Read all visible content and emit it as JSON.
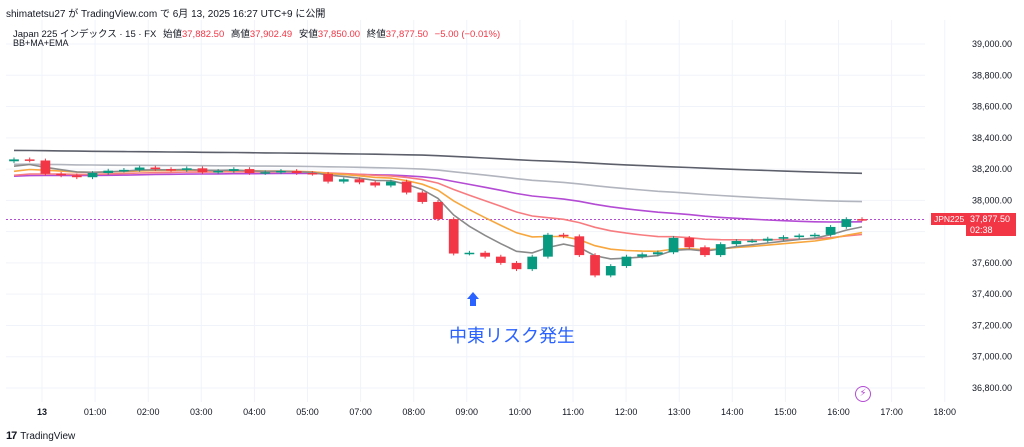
{
  "header": {
    "publisher": "shimatetsu27 が TradingView.com で 6月 13, 2025 16:27 UTC+9 に公開"
  },
  "legend": {
    "symbol": "Japan 225 インデックス · 15 · FX",
    "open_label": "始値",
    "open": "37,882.50",
    "high_label": "高値",
    "high": "37,902.49",
    "low_label": "安値",
    "low": "37,850.00",
    "close_label": "終値",
    "close": "37,877.50",
    "change": "−5.00 (−0.01%)",
    "indicators": "BB+MA+EMA"
  },
  "price_tag": {
    "symbol": "JPN225",
    "price": "37,877.50",
    "countdown": "02:38"
  },
  "annotation": "中東リスク発生",
  "footer": {
    "brand": "TradingView"
  },
  "colors": {
    "up": "#089981",
    "down": "#f23645",
    "annotation": "#2962ff",
    "ma_dark": "#5d606b",
    "ma_grey": "#b2b5be",
    "purple": "#b44bd4",
    "pink": "#f77c80",
    "orange": "#f7a73e",
    "ema_fast": "#8a8a8a"
  },
  "chart_data": {
    "type": "candlestick",
    "y_ticks": [
      39000,
      38800,
      38600,
      38400,
      38200,
      38000,
      37800,
      37600,
      37400,
      37200,
      37000,
      36800
    ],
    "y_tick_labels": [
      "39,000.00",
      "38,800.00",
      "38,600.00",
      "38,400.00",
      "38,200.00",
      "38,000.00",
      "37,800.00",
      "37,600.00",
      "37,400.00",
      "37,200.00",
      "37,000.00",
      "36,800.00"
    ],
    "ylim": [
      36720,
      39080
    ],
    "x_tick_labels": [
      "13",
      "01:00",
      "02:00",
      "03:00",
      "04:00",
      "05:00",
      "07:00",
      "08:00",
      "09:00",
      "10:00",
      "11:00",
      "12:00",
      "13:00",
      "14:00",
      "15:00",
      "16:00",
      "17:00",
      "18:00"
    ],
    "current_price": 37877.5,
    "candles": [
      {
        "o": 38250,
        "c": 38262
      },
      {
        "o": 38262,
        "c": 38255
      },
      {
        "o": 38255,
        "c": 38170
      },
      {
        "o": 38170,
        "c": 38160
      },
      {
        "o": 38160,
        "c": 38148
      },
      {
        "o": 38148,
        "c": 38175
      },
      {
        "o": 38175,
        "c": 38190
      },
      {
        "o": 38190,
        "c": 38195
      },
      {
        "o": 38195,
        "c": 38210
      },
      {
        "o": 38210,
        "c": 38200
      },
      {
        "o": 38200,
        "c": 38195
      },
      {
        "o": 38195,
        "c": 38205
      },
      {
        "o": 38205,
        "c": 38180
      },
      {
        "o": 38180,
        "c": 38188
      },
      {
        "o": 38188,
        "c": 38200
      },
      {
        "o": 38200,
        "c": 38175
      },
      {
        "o": 38175,
        "c": 38180
      },
      {
        "o": 38180,
        "c": 38188
      },
      {
        "o": 38188,
        "c": 38175
      },
      {
        "o": 38175,
        "c": 38170
      },
      {
        "o": 38170,
        "c": 38120
      },
      {
        "o": 38120,
        "c": 38135
      },
      {
        "o": 38135,
        "c": 38115
      },
      {
        "o": 38115,
        "c": 38095
      },
      {
        "o": 38095,
        "c": 38120
      },
      {
        "o": 38120,
        "c": 38050
      },
      {
        "o": 38050,
        "c": 37990
      },
      {
        "o": 37990,
        "c": 37880
      },
      {
        "o": 37880,
        "c": 37660
      },
      {
        "o": 37660,
        "c": 37665
      },
      {
        "o": 37665,
        "c": 37640
      },
      {
        "o": 37640,
        "c": 37600
      },
      {
        "o": 37600,
        "c": 37560
      },
      {
        "o": 37560,
        "c": 37640
      },
      {
        "o": 37640,
        "c": 37780
      },
      {
        "o": 37780,
        "c": 37770
      },
      {
        "o": 37770,
        "c": 37650
      },
      {
        "o": 37650,
        "c": 37520
      },
      {
        "o": 37520,
        "c": 37580
      },
      {
        "o": 37580,
        "c": 37640
      },
      {
        "o": 37640,
        "c": 37655
      },
      {
        "o": 37655,
        "c": 37668
      },
      {
        "o": 37668,
        "c": 37760
      },
      {
        "o": 37760,
        "c": 37700
      },
      {
        "o": 37700,
        "c": 37650
      },
      {
        "o": 37650,
        "c": 37720
      },
      {
        "o": 37720,
        "c": 37740
      },
      {
        "o": 37740,
        "c": 37742
      },
      {
        "o": 37742,
        "c": 37755
      },
      {
        "o": 37755,
        "c": 37765
      },
      {
        "o": 37765,
        "c": 37775
      },
      {
        "o": 37775,
        "c": 37780
      },
      {
        "o": 37780,
        "c": 37830
      },
      {
        "o": 37830,
        "c": 37880
      },
      {
        "o": 37880,
        "c": 37878
      }
    ]
  }
}
